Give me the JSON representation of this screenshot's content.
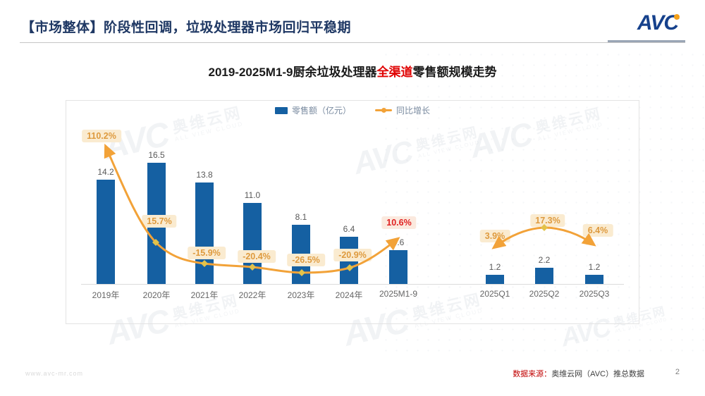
{
  "header": {
    "title": "【市场整体】阶段性回调，垃圾处理器市场回归平稳期",
    "logo_text": "AVC"
  },
  "chart": {
    "title_prefix": "2019-2025M1-9厨余垃圾处理器",
    "title_highlight": "全渠道",
    "title_suffix": "零售额规模走势",
    "legend": [
      {
        "label": "零售额（亿元）"
      },
      {
        "label": "同比增长"
      }
    ]
  },
  "chart_data": {
    "type": "bar",
    "title": "2019-2025M1-9厨余垃圾处理器全渠道零售额规模走势",
    "xlabel": "",
    "ylabel": "零售额（亿元）",
    "legend_position": "top",
    "grid": false,
    "categories": [
      "2019年",
      "2020年",
      "2021年",
      "2022年",
      "2023年",
      "2024年",
      "2025M1-9",
      "2025Q1",
      "2025Q2",
      "2025Q3"
    ],
    "series": [
      {
        "name": "零售额（亿元）",
        "type": "bar",
        "values": [
          14.2,
          16.5,
          13.8,
          11.0,
          8.1,
          6.4,
          4.6,
          1.2,
          2.2,
          1.2
        ],
        "value_labels": [
          "14.2",
          "16.5",
          "13.8",
          "11.0",
          "8.1",
          "6.4",
          "4.6",
          "1.2",
          "2.2",
          "1.2"
        ]
      },
      {
        "name": "同比增长",
        "type": "line",
        "values": [
          110.2,
          15.7,
          -15.9,
          -20.4,
          -26.5,
          -20.9,
          10.6,
          3.9,
          17.3,
          6.4
        ],
        "value_labels": [
          "110.2%",
          "15.7%",
          "-15.9%",
          "-20.4%",
          "-26.5%",
          "-20.9%",
          "10.6%",
          "3.9%",
          "17.3%",
          "6.4%"
        ],
        "highlight_index": 6
      }
    ],
    "colors": {
      "bar": "#1560A2",
      "line": "#F2A238",
      "pct_text": "#DE9A3E",
      "pct_bg": "#FAEBD0",
      "highlight_text": "#E02222",
      "highlight_bg": "#FBE9DE"
    }
  },
  "watermark": {
    "brand": "AVC",
    "cn": "奥维云网",
    "en": "ALL VIEW CLOUD"
  },
  "footer": {
    "site": "www.avc-mr.com",
    "source_label": "数据来源：",
    "source_text": "奥维云网（AVC）推总数据",
    "page": "2"
  }
}
